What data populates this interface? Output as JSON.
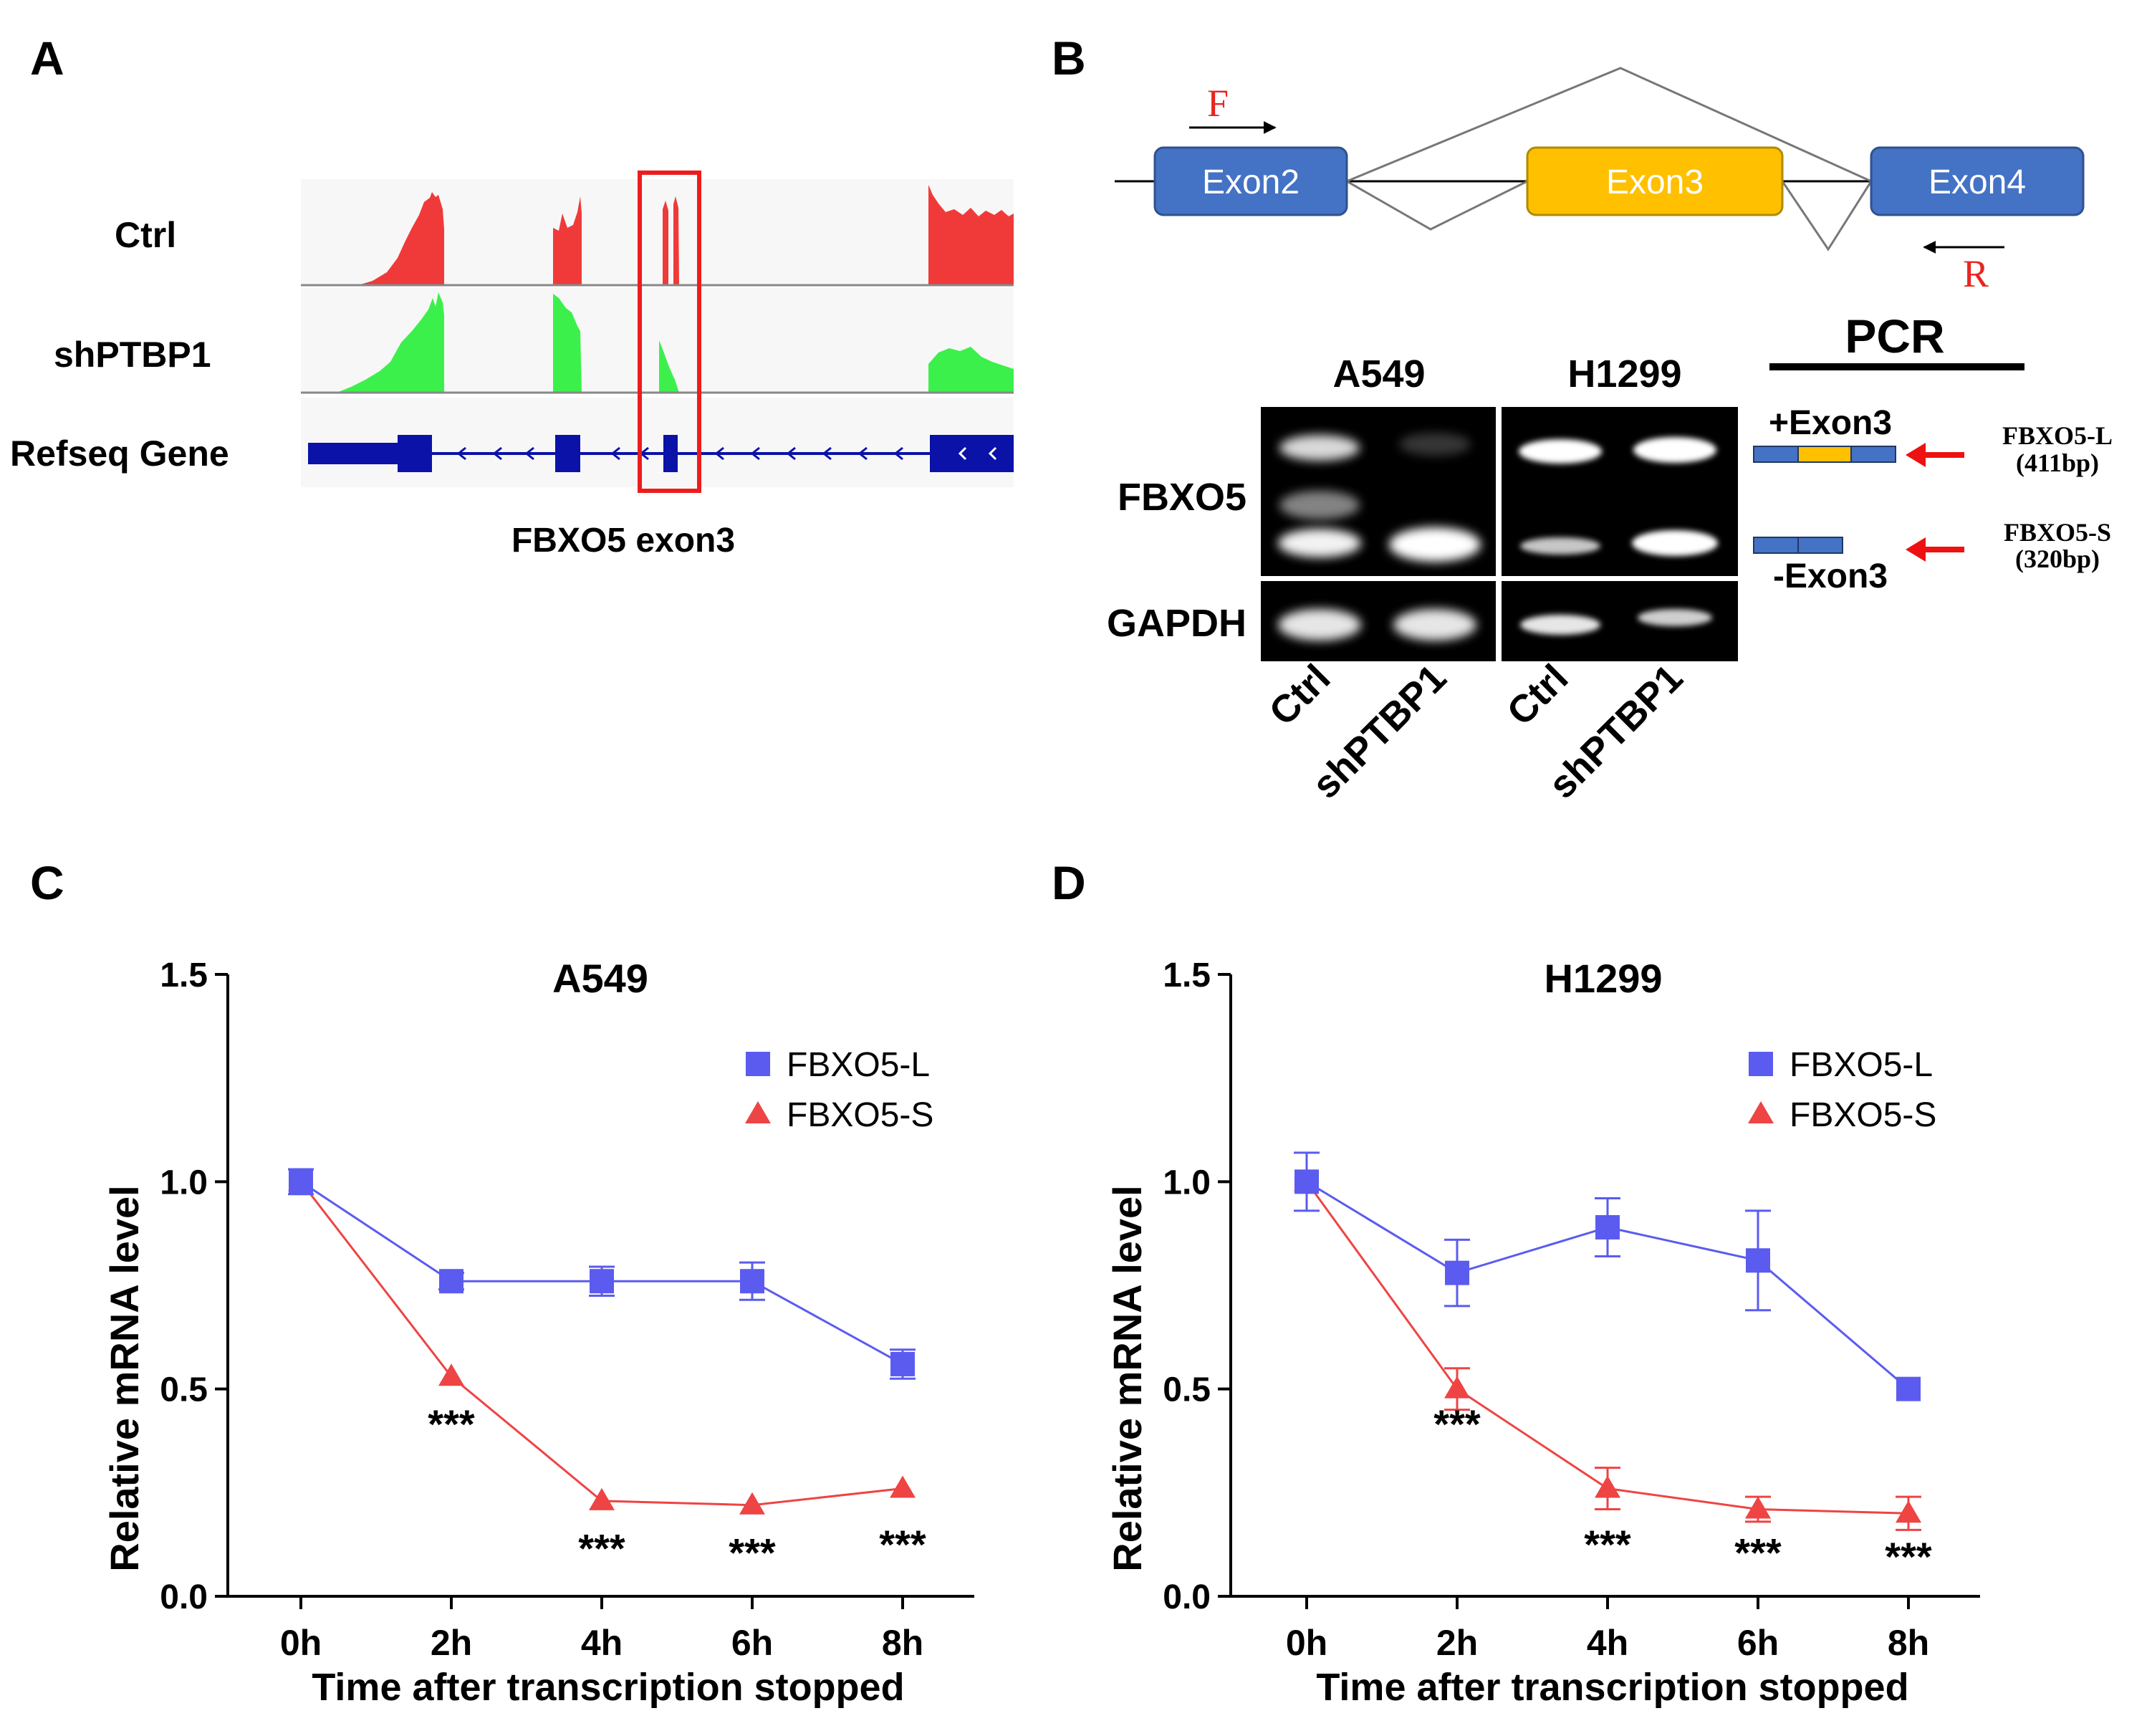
{
  "panels": {
    "a": {
      "letter": "A",
      "tracks": [
        "Ctrl",
        "shPTBP1",
        "Refseq Gene"
      ],
      "caption": "FBXO5 exon3",
      "colors": {
        "ctrl": "#f03a3a",
        "sh": "#3cf04c",
        "gene": "#0a12a8",
        "box": "#ee1c1c"
      }
    },
    "b": {
      "letter": "B",
      "exons": [
        "Exon2",
        "Exon3",
        "Exon4"
      ],
      "primer_f": "F",
      "primer_r": "R",
      "pcr_label": "PCR",
      "cell_lines": [
        "A549",
        "H1299"
      ],
      "genes": [
        "FBXO5",
        "GAPDH"
      ],
      "lane_labels": [
        "Ctrl",
        "shPTBP1",
        "Ctrl",
        "shPTBP1"
      ],
      "plus_exon": "+Exon3",
      "minus_exon": "-Exon3",
      "long_name": "FBXO5-L",
      "long_size": "(411bp)",
      "short_name": "FBXO5-S",
      "short_size": "(320bp)",
      "colors": {
        "exon_blue": "#4472c4",
        "exon_yellow": "#ffc000",
        "primer": "#e8251f",
        "arrow": "#ee1111"
      }
    },
    "c_letter": "C",
    "d_letter": "D"
  },
  "chart_data": [
    {
      "type": "line",
      "title": "A549",
      "xlabel": "Time after  transcription stopped",
      "ylabel": "Relative mRNA level",
      "categories": [
        "0h",
        "2h",
        "4h",
        "6h",
        "8h"
      ],
      "yticks": [
        "0.0",
        "0.5",
        "1.0",
        "1.5"
      ],
      "ylim": [
        0,
        1.5
      ],
      "legend": "top-right",
      "series": [
        {
          "name": "FBXO5-L",
          "marker": "square",
          "color": "#5b5bf0",
          "values": [
            1.0,
            0.76,
            0.76,
            0.76,
            0.56
          ],
          "err": [
            0.03,
            0.02,
            0.035,
            0.045,
            0.035
          ]
        },
        {
          "name": "FBXO5-S",
          "marker": "triangle",
          "color": "#ee4444",
          "values": [
            1.0,
            0.53,
            0.23,
            0.22,
            0.26
          ],
          "err": [
            0,
            0,
            0,
            0,
            0
          ]
        }
      ],
      "annotations": [
        {
          "text": "***",
          "x": "2h",
          "y": 0.42
        },
        {
          "text": "***",
          "x": "4h",
          "y": 0.12
        },
        {
          "text": "***",
          "x": "6h",
          "y": 0.11
        },
        {
          "text": "***",
          "x": "8h",
          "y": 0.13
        }
      ]
    },
    {
      "type": "line",
      "title": "H1299",
      "xlabel": "Time after  transcription stopped",
      "ylabel": "Relative mRNA level",
      "categories": [
        "0h",
        "2h",
        "4h",
        "6h",
        "8h"
      ],
      "yticks": [
        "0.0",
        "0.5",
        "1.0",
        "1.5"
      ],
      "ylim": [
        0,
        1.5
      ],
      "legend": "top-right",
      "series": [
        {
          "name": "FBXO5-L",
          "marker": "square",
          "color": "#5b5bf0",
          "values": [
            1.0,
            0.78,
            0.89,
            0.81,
            0.5
          ],
          "err": [
            0.07,
            0.08,
            0.07,
            0.12,
            0.0
          ]
        },
        {
          "name": "FBXO5-S",
          "marker": "triangle",
          "color": "#ee4444",
          "values": [
            1.0,
            0.5,
            0.26,
            0.21,
            0.2
          ],
          "err": [
            0,
            0.05,
            0.05,
            0.03,
            0.04
          ]
        }
      ],
      "annotations": [
        {
          "text": "***",
          "x": "2h",
          "y": 0.42
        },
        {
          "text": "***",
          "x": "4h",
          "y": 0.13
        },
        {
          "text": "***",
          "x": "6h",
          "y": 0.11
        },
        {
          "text": "***",
          "x": "8h",
          "y": 0.1
        }
      ]
    }
  ]
}
